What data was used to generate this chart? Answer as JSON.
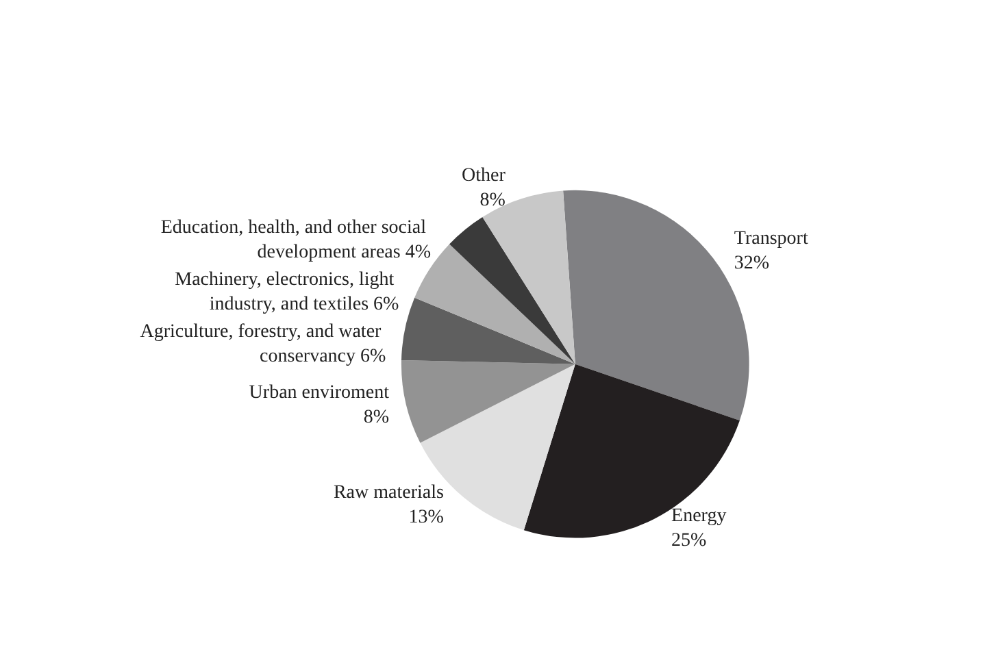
{
  "chart_data": {
    "type": "pie",
    "categories": [
      "Transport",
      "Energy",
      "Raw materials",
      "Urban enviroment",
      "Agriculture, forestry, and water conservancy",
      "Machinery, electronics, light industry, and textiles",
      "Education, health, and other social development areas",
      "Other"
    ],
    "values": [
      32,
      25,
      13,
      8,
      6,
      6,
      4,
      8
    ],
    "value_labels": [
      "32%",
      "25%",
      "13%",
      "8%",
      "6%",
      "6%",
      "4%",
      "8%"
    ],
    "colors": [
      "#808083",
      "#231f20",
      "#e0e0e0",
      "#939393",
      "#5f5f5f",
      "#b0b0b0",
      "#3a3a3a",
      "#c8c8c8"
    ],
    "legend": false
  }
}
